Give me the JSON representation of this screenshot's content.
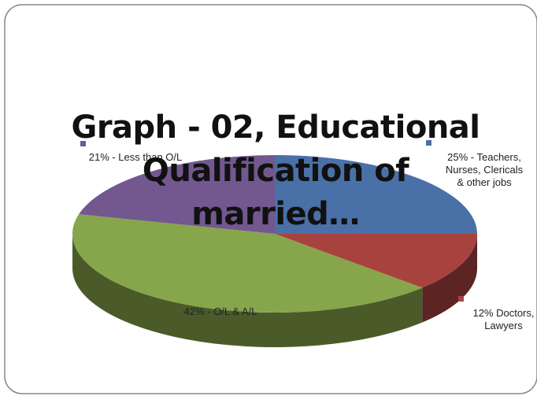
{
  "chart_data": {
    "type": "pie3d",
    "title": "Graph - 02, Educational Qualification of married…",
    "values": [
      25,
      12,
      42,
      21
    ],
    "value_labels": [
      "25% - Teachers, Nurses, Clericals & other jobs",
      "12% Doctors, Lawyers",
      "42% - O/L & A/L",
      "21% - Less than O/L"
    ],
    "colors": [
      "#4a70a8",
      "#a8423f",
      "#87a54b",
      "#72588f"
    ]
  }
}
